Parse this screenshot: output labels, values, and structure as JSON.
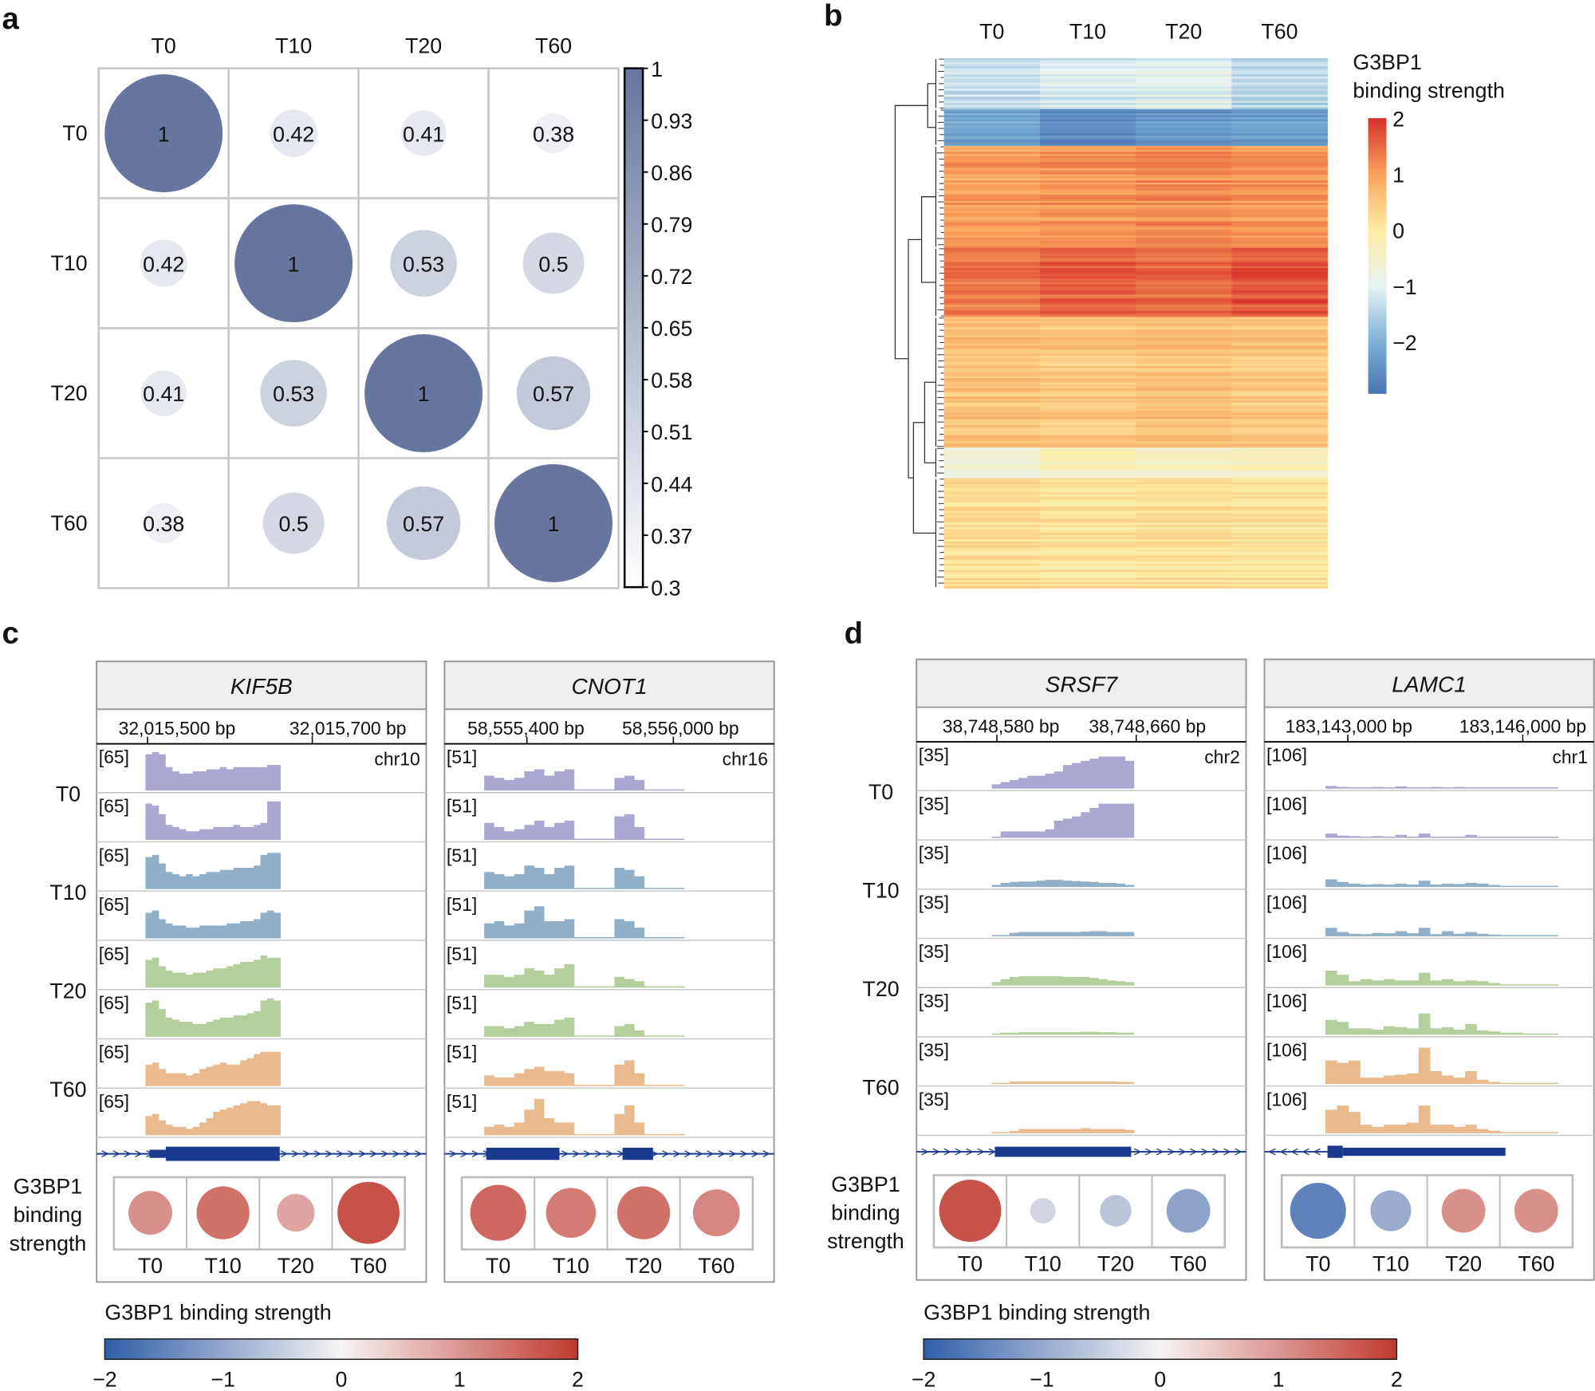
{
  "figure": {
    "panel_labels": [
      "a",
      "b",
      "c",
      "d"
    ]
  },
  "colors": {
    "tracks": [
      "#aaa8d3",
      "#aaa8d3",
      "#8fb0c8",
      "#8fb0c8",
      "#b5cf9c",
      "#b5cf9c",
      "#e8ba8e",
      "#e8ba8e"
    ],
    "correlation_low": "#ffffff",
    "correlation_high": "#66769e",
    "gene_model": "#1a3a8f",
    "header_bg": "#eeeeee"
  },
  "chart_data": [
    {
      "panel": "a",
      "type": "heatmap",
      "categories": [
        "T0",
        "T10",
        "T20",
        "T60"
      ],
      "matrix": [
        [
          1,
          0.42,
          0.41,
          0.38
        ],
        [
          0.42,
          1,
          0.53,
          0.5
        ],
        [
          0.41,
          0.53,
          1,
          0.57
        ],
        [
          0.38,
          0.5,
          0.57,
          1
        ]
      ],
      "colorbar": {
        "range": [
          0.3,
          1
        ],
        "ticks": [
          1,
          0.93,
          0.86,
          0.79,
          0.72,
          0.65,
          0.58,
          0.51,
          0.44,
          0.37,
          0.3
        ]
      }
    },
    {
      "panel": "b",
      "type": "heatmap",
      "columns": [
        "T0",
        "T10",
        "T20",
        "T60"
      ],
      "legend_title": [
        "G3BP1",
        "binding strength"
      ],
      "colorbar": {
        "ticks": [
          2,
          1,
          0,
          -1,
          -2
        ],
        "tick_labels": [
          "2",
          "1",
          "0",
          "−1",
          "−2"
        ]
      },
      "row_clusters": [
        {
          "rows": 25,
          "values": [
            -1.3,
            -1.1,
            -1.0,
            -1.4
          ]
        },
        {
          "rows": 18,
          "values": [
            -2.2,
            -2.6,
            -2.4,
            -2.3
          ]
        },
        {
          "rows": 50,
          "values": [
            1.0,
            1.1,
            1.2,
            1.1
          ]
        },
        {
          "rows": 34,
          "values": [
            1.4,
            1.6,
            1.5,
            1.7
          ]
        },
        {
          "rows": 64,
          "values": [
            0.6,
            0.5,
            0.6,
            0.5
          ]
        },
        {
          "rows": 15,
          "values": [
            -0.6,
            -0.3,
            -0.4,
            -0.3
          ]
        },
        {
          "rows": 54,
          "values": [
            0.2,
            0.1,
            0.15,
            0.1
          ]
        }
      ]
    },
    {
      "panel": "c",
      "type": "area",
      "group_labels": [
        "T0",
        "T10",
        "T20",
        "T60"
      ],
      "circle_title": [
        "G3BP1",
        "binding",
        "strength"
      ],
      "colorbar": {
        "title": "G3BP1 binding strength",
        "range": [
          -2,
          2
        ],
        "ticks": [
          "−2",
          "−1",
          "0",
          "1",
          "2"
        ]
      },
      "genes": [
        {
          "name": "KIF5B",
          "axis_ticks": [
            "32,015,500 bp",
            "32,015,700 bp"
          ],
          "chrom": "chr10",
          "scale": "[65]",
          "timepoints": [
            "T0",
            "T10",
            "T20",
            "T60"
          ],
          "binding_strength": [
            0.9,
            1.2,
            0.7,
            1.5
          ],
          "tracks": [
            [
              0.85,
              0.9,
              0.85,
              0.55,
              0.45,
              0.4,
              0.4,
              0.45,
              0.45,
              0.5,
              0.5,
              0.55,
              0.5,
              0.55,
              0.55,
              0.55,
              0.55,
              0.55,
              0.6,
              0.6
            ],
            [
              0.85,
              0.8,
              0.6,
              0.35,
              0.3,
              0.25,
              0.2,
              0.2,
              0.25,
              0.25,
              0.3,
              0.3,
              0.3,
              0.35,
              0.3,
              0.3,
              0.35,
              0.4,
              0.9,
              0.9
            ],
            [
              0.75,
              0.8,
              0.6,
              0.4,
              0.35,
              0.3,
              0.35,
              0.3,
              0.35,
              0.4,
              0.4,
              0.45,
              0.45,
              0.5,
              0.5,
              0.5,
              0.55,
              0.8,
              0.85,
              0.85
            ],
            [
              0.6,
              0.65,
              0.45,
              0.35,
              0.3,
              0.3,
              0.25,
              0.25,
              0.3,
              0.3,
              0.3,
              0.3,
              0.35,
              0.35,
              0.4,
              0.4,
              0.45,
              0.6,
              0.65,
              0.6
            ],
            [
              0.65,
              0.7,
              0.5,
              0.4,
              0.35,
              0.35,
              0.3,
              0.35,
              0.35,
              0.4,
              0.45,
              0.45,
              0.5,
              0.55,
              0.6,
              0.6,
              0.65,
              0.75,
              0.7,
              0.7
            ],
            [
              0.8,
              0.85,
              0.65,
              0.45,
              0.4,
              0.35,
              0.35,
              0.3,
              0.3,
              0.35,
              0.4,
              0.45,
              0.45,
              0.5,
              0.5,
              0.55,
              0.6,
              0.85,
              0.9,
              0.85
            ],
            [
              0.5,
              0.55,
              0.4,
              0.3,
              0.3,
              0.3,
              0.25,
              0.3,
              0.4,
              0.45,
              0.5,
              0.55,
              0.5,
              0.5,
              0.6,
              0.65,
              0.75,
              0.8,
              0.8,
              0.8
            ],
            [
              0.45,
              0.5,
              0.35,
              0.25,
              0.2,
              0.2,
              0.15,
              0.2,
              0.3,
              0.4,
              0.55,
              0.6,
              0.65,
              0.7,
              0.75,
              0.8,
              0.8,
              0.75,
              0.7,
              0.7
            ]
          ]
        },
        {
          "name": "CNOT1",
          "axis_ticks": [
            "58,555,400 bp",
            "58,556,000 bp"
          ],
          "chrom": "chr16",
          "scale": "[51]",
          "timepoints": [
            "T0",
            "T10",
            "T20",
            "T60"
          ],
          "binding_strength": [
            1.3,
            1.1,
            1.2,
            1.0
          ],
          "tracks": [
            [
              0.35,
              0.3,
              0.25,
              0.3,
              0.45,
              0.5,
              0.35,
              0.45,
              0.5,
              0.02,
              0.02,
              0.02,
              0.02,
              0.3,
              0.35,
              0.25,
              0.02,
              0.02,
              0.02,
              0.02
            ],
            [
              0.4,
              0.3,
              0.2,
              0.25,
              0.35,
              0.45,
              0.3,
              0.4,
              0.45,
              0.02,
              0.02,
              0.02,
              0.02,
              0.55,
              0.6,
              0.3,
              0.02,
              0.02,
              0.02,
              0.02
            ],
            [
              0.4,
              0.35,
              0.3,
              0.35,
              0.55,
              0.5,
              0.35,
              0.5,
              0.55,
              0.02,
              0.02,
              0.02,
              0.02,
              0.5,
              0.45,
              0.3,
              0.02,
              0.02,
              0.02,
              0.02
            ],
            [
              0.35,
              0.4,
              0.3,
              0.35,
              0.65,
              0.75,
              0.4,
              0.4,
              0.45,
              0.02,
              0.02,
              0.02,
              0.02,
              0.45,
              0.4,
              0.25,
              0.02,
              0.02,
              0.02,
              0.02
            ],
            [
              0.3,
              0.3,
              0.25,
              0.3,
              0.45,
              0.4,
              0.3,
              0.45,
              0.55,
              0.02,
              0.02,
              0.02,
              0.02,
              0.25,
              0.2,
              0.15,
              0.02,
              0.02,
              0.02,
              0.02
            ],
            [
              0.25,
              0.25,
              0.2,
              0.25,
              0.35,
              0.3,
              0.3,
              0.4,
              0.45,
              0.02,
              0.02,
              0.02,
              0.02,
              0.25,
              0.3,
              0.15,
              0.02,
              0.02,
              0.02,
              0.02
            ],
            [
              0.25,
              0.2,
              0.2,
              0.3,
              0.4,
              0.45,
              0.35,
              0.35,
              0.3,
              0.02,
              0.02,
              0.02,
              0.02,
              0.5,
              0.6,
              0.3,
              0.02,
              0.02,
              0.02,
              0.02
            ],
            [
              0.2,
              0.25,
              0.2,
              0.3,
              0.6,
              0.85,
              0.4,
              0.3,
              0.3,
              0.02,
              0.02,
              0.02,
              0.02,
              0.5,
              0.7,
              0.3,
              0.02,
              0.02,
              0.02,
              0.02
            ]
          ]
        }
      ]
    },
    {
      "panel": "d",
      "type": "area",
      "group_labels": [
        "T0",
        "T10",
        "T20",
        "T60"
      ],
      "circle_title": [
        "G3BP1",
        "binding",
        "strength"
      ],
      "colorbar": {
        "title": "G3BP1 binding strength",
        "range": [
          -2,
          2
        ],
        "ticks": [
          "−2",
          "−1",
          "0",
          "1",
          "2"
        ]
      },
      "genes": [
        {
          "name": "SRSF7",
          "axis_ticks": [
            "38,748,580 bp",
            "38,748,660 bp"
          ],
          "chrom": "chr2",
          "scale": "[35]",
          "timepoints": [
            "T0",
            "T10",
            "T20",
            "T60"
          ],
          "binding_strength": [
            1.5,
            -0.3,
            -0.5,
            -0.9
          ],
          "tracks": [
            [
              0.1,
              0.15,
              0.2,
              0.25,
              0.3,
              0.3,
              0.35,
              0.4,
              0.55,
              0.6,
              0.65,
              0.7,
              0.75,
              0.75,
              0.75,
              0.65
            ],
            [
              0.0,
              0.15,
              0.15,
              0.15,
              0.15,
              0.15,
              0.2,
              0.4,
              0.45,
              0.5,
              0.6,
              0.7,
              0.8,
              0.8,
              0.8,
              0.8
            ],
            [
              0.05,
              0.1,
              0.12,
              0.13,
              0.13,
              0.15,
              0.17,
              0.17,
              0.15,
              0.14,
              0.13,
              0.12,
              0.1,
              0.1,
              0.08,
              0.05
            ],
            [
              0.0,
              0.0,
              0.08,
              0.1,
              0.1,
              0.1,
              0.1,
              0.1,
              0.1,
              0.1,
              0.11,
              0.12,
              0.12,
              0.1,
              0.1,
              0.1
            ],
            [
              0.08,
              0.15,
              0.2,
              0.22,
              0.22,
              0.22,
              0.22,
              0.22,
              0.2,
              0.2,
              0.2,
              0.18,
              0.15,
              0.12,
              0.1,
              0.08
            ],
            [
              0.03,
              0.05,
              0.05,
              0.06,
              0.06,
              0.06,
              0.06,
              0.06,
              0.06,
              0.06,
              0.07,
              0.07,
              0.06,
              0.06,
              0.05,
              0.05
            ],
            [
              0.0,
              0.0,
              0.06,
              0.06,
              0.06,
              0.06,
              0.06,
              0.06,
              0.06,
              0.06,
              0.06,
              0.06,
              0.06,
              0.06,
              0.05,
              0.05
            ],
            [
              0.0,
              0.0,
              0.05,
              0.1,
              0.1,
              0.1,
              0.1,
              0.1,
              0.1,
              0.1,
              0.12,
              0.1,
              0.1,
              0.1,
              0.1,
              0.08
            ]
          ]
        },
        {
          "name": "LAMC1",
          "axis_ticks": [
            "183,143,000 bp",
            "183,146,000 bp"
          ],
          "chrom": "chr1",
          "scale": "[106]",
          "timepoints": [
            "T0",
            "T10",
            "T20",
            "T60"
          ],
          "binding_strength": [
            -1.3,
            -0.8,
            0.9,
            0.9
          ],
          "tracks": [
            [
              0.06,
              0.04,
              0.03,
              0.03,
              0.04,
              0.03,
              0.05,
              0.03,
              0.03,
              0.04,
              0.03,
              0.04,
              0.03,
              0.03,
              0.02,
              0.02,
              0.02,
              0.02,
              0.02,
              0.02
            ],
            [
              0.1,
              0.05,
              0.04,
              0.03,
              0.04,
              0.03,
              0.07,
              0.03,
              0.1,
              0.03,
              0.03,
              0.03,
              0.07,
              0.03,
              0.02,
              0.02,
              0.02,
              0.02,
              0.02,
              0.02
            ],
            [
              0.18,
              0.12,
              0.08,
              0.06,
              0.07,
              0.06,
              0.08,
              0.06,
              0.15,
              0.06,
              0.08,
              0.07,
              0.1,
              0.08,
              0.05,
              0.02,
              0.02,
              0.02,
              0.02,
              0.02
            ],
            [
              0.2,
              0.1,
              0.06,
              0.05,
              0.08,
              0.07,
              0.12,
              0.07,
              0.2,
              0.05,
              0.12,
              0.06,
              0.1,
              0.06,
              0.04,
              0.02,
              0.02,
              0.02,
              0.02,
              0.02
            ],
            [
              0.35,
              0.25,
              0.1,
              0.15,
              0.12,
              0.15,
              0.12,
              0.12,
              0.3,
              0.12,
              0.15,
              0.1,
              0.12,
              0.1,
              0.06,
              0.02,
              0.02,
              0.02,
              0.02,
              0.02
            ],
            [
              0.35,
              0.3,
              0.15,
              0.15,
              0.12,
              0.2,
              0.18,
              0.15,
              0.5,
              0.15,
              0.18,
              0.12,
              0.25,
              0.1,
              0.08,
              0.05,
              0.05,
              0.03,
              0.03,
              0.03
            ],
            [
              0.55,
              0.5,
              0.55,
              0.15,
              0.15,
              0.2,
              0.22,
              0.25,
              0.85,
              0.3,
              0.2,
              0.15,
              0.3,
              0.1,
              0.05,
              0.02,
              0.02,
              0.02,
              0.02,
              0.02
            ],
            [
              0.55,
              0.65,
              0.5,
              0.2,
              0.15,
              0.2,
              0.2,
              0.25,
              0.65,
              0.2,
              0.2,
              0.15,
              0.2,
              0.1,
              0.06,
              0.02,
              0.02,
              0.02,
              0.02,
              0.02
            ]
          ]
        }
      ]
    }
  ]
}
